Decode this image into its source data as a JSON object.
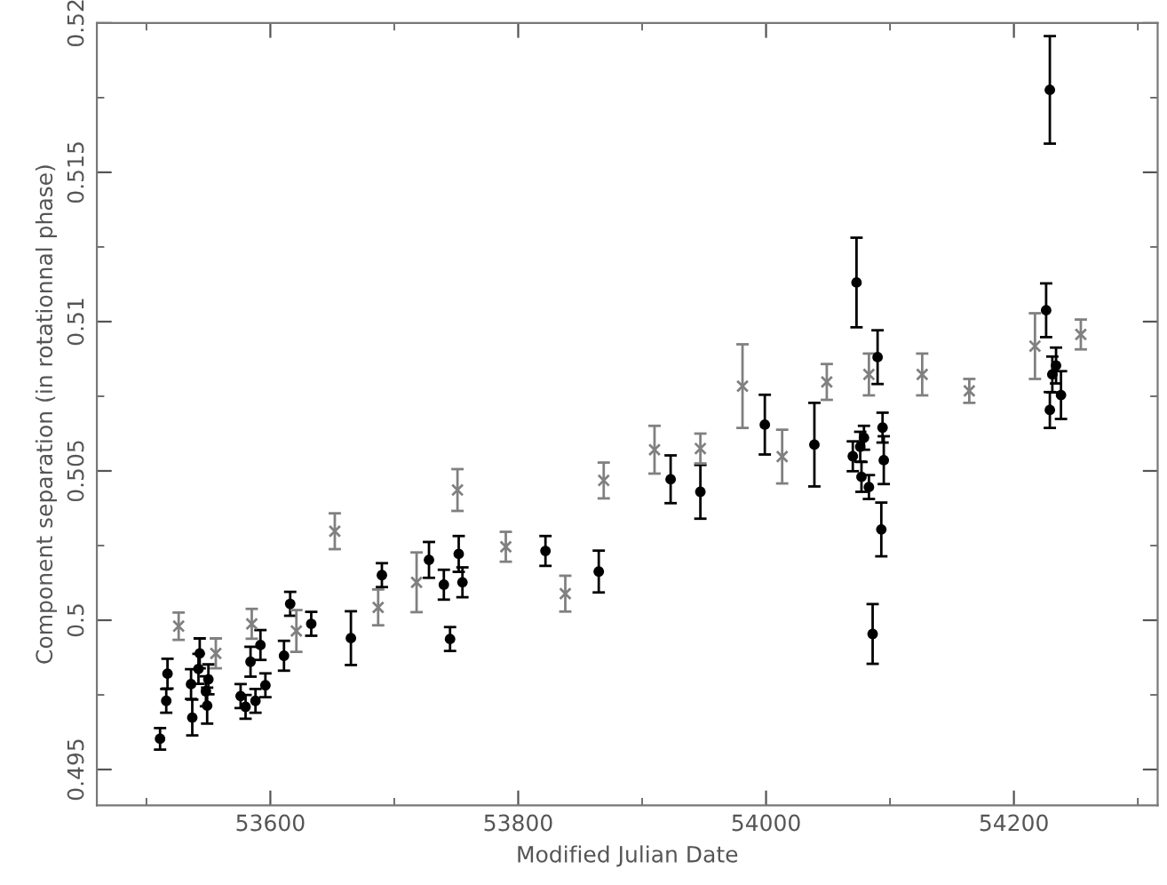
{
  "chart_data": {
    "type": "scatter",
    "xlabel": "Modified Julian Date",
    "ylabel": "Component separation (in rotationnal phase)",
    "xlim": [
      53460,
      54316
    ],
    "ylim": [
      0.4938,
      0.52
    ],
    "xticks": [
      53600,
      53800,
      54000,
      54200
    ],
    "yticks": [
      0.495,
      0.5,
      0.505,
      0.51,
      0.515,
      0.52
    ],
    "grid": false,
    "legend": false,
    "series": [
      {
        "color": "#000000",
        "marker": "circle",
        "x": [
          53511,
          53515,
          53516,
          53517,
          53536,
          53537,
          53542,
          53543,
          53548,
          53549,
          53550,
          53576,
          53580,
          53584,
          53588,
          53592,
          53596,
          53611,
          53616,
          53633,
          53665,
          53690,
          53728,
          53740,
          53745,
          53752,
          53755,
          53822,
          53865,
          53923,
          53947,
          53999,
          54039,
          54070,
          54073,
          54076,
          54077,
          54079,
          54083,
          54086,
          54090,
          54093,
          54094,
          54095,
          54226,
          54229,
          54229,
          54231,
          54234,
          54238
        ],
        "values": [
          0.49603,
          null,
          0.4973,
          0.49821,
          0.49786,
          0.49674,
          0.49837,
          0.49889,
          0.49762,
          0.49714,
          0.49802,
          0.49746,
          0.4971,
          0.49861,
          0.4973,
          0.49917,
          0.49782,
          0.49881,
          0.50055,
          0.49988,
          0.4994,
          0.50151,
          0.50202,
          0.50119,
          0.49937,
          0.50222,
          0.50127,
          0.50232,
          0.50163,
          0.50472,
          0.5043,
          0.50655,
          0.50588,
          0.50549,
          0.51131,
          0.50581,
          0.5048,
          0.50611,
          0.50446,
          0.49954,
          0.50881,
          0.50304,
          0.50645,
          0.50536,
          0.51038,
          0.51776,
          0.50704,
          0.50823,
          0.50853,
          0.50754
        ],
        "errors": [
          0.00036,
          null,
          0.0004,
          0.0005,
          0.0005,
          0.0006,
          0.0005,
          0.0005,
          0.0005,
          0.0006,
          0.0005,
          0.0004,
          0.0004,
          0.0005,
          0.0004,
          0.0005,
          0.0004,
          0.0005,
          0.0004,
          0.0004,
          0.0009,
          0.0004,
          0.0006,
          0.0005,
          0.0004,
          0.0006,
          0.0005,
          0.0005,
          0.0007,
          0.0008,
          0.0009,
          0.001,
          0.0014,
          0.0005,
          0.0015,
          0.0005,
          0.0005,
          0.0004,
          0.0004,
          0.001,
          0.0009,
          0.0009,
          0.0005,
          0.0008,
          0.0009,
          0.0018,
          0.0006,
          0.0006,
          0.0006,
          0.0008
        ]
      },
      {
        "color": "#808080",
        "marker": "cross",
        "x": [
          53526,
          53556,
          53585,
          53621,
          53652,
          53687,
          53718,
          53751,
          53790,
          53838,
          53869,
          53910,
          53947,
          53981,
          54013,
          54049,
          54083,
          54126,
          54164,
          54217,
          54254
        ],
        "values": [
          0.4998,
          0.49889,
          0.49988,
          0.49964,
          0.50298,
          0.50043,
          0.50127,
          0.50436,
          0.50246,
          0.50089,
          0.50468,
          0.50571,
          0.50575,
          0.50784,
          0.50548,
          0.50798,
          0.50823,
          0.50823,
          0.50768,
          0.50918,
          0.50957
        ],
        "errors": [
          0.00046,
          0.0005,
          0.0005,
          0.0007,
          0.0006,
          0.0006,
          0.001,
          0.0007,
          0.0005,
          0.0006,
          0.0006,
          0.0008,
          0.0005,
          0.0014,
          0.0009,
          0.0006,
          0.0007,
          0.0007,
          0.0004,
          0.0011,
          0.0005
        ]
      }
    ]
  }
}
